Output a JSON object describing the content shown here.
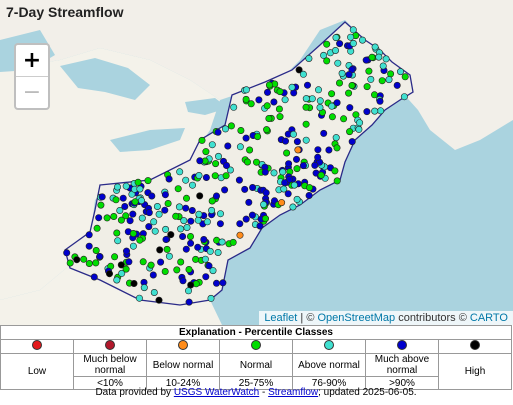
{
  "map": {
    "title": "7-Day Streamflow",
    "zoom_in": "+",
    "zoom_out": "−",
    "attribution": {
      "leaflet": "Leaflet",
      "sep": " | © ",
      "osm": "OpenStreetMap",
      "mid": " contributors © ",
      "carto": "CARTO"
    }
  },
  "legend": {
    "title": "Explanation - Percentile Classes",
    "classes": [
      {
        "label": "Low",
        "range": "",
        "color": "#e31a1c"
      },
      {
        "label": "Much below normal",
        "range": "<10%",
        "color": "#b2182b"
      },
      {
        "label": "Below normal",
        "range": "10-24%",
        "color": "#ff8c1a"
      },
      {
        "label": "Normal",
        "range": "25-75%",
        "color": "#00dd00"
      },
      {
        "label": "Above normal",
        "range": "76-90%",
        "color": "#40e0d0"
      },
      {
        "label": "Much above normal",
        "range": ">90%",
        "color": "#0000cc"
      },
      {
        "label": "High",
        "range": "",
        "color": "#000000"
      }
    ]
  },
  "footer": {
    "prefix": "Data provided by ",
    "link1": "USGS WaterWatch",
    "dash": " - ",
    "link2": "Streamflow",
    "suffix": "; updated 2025-06-05."
  }
}
